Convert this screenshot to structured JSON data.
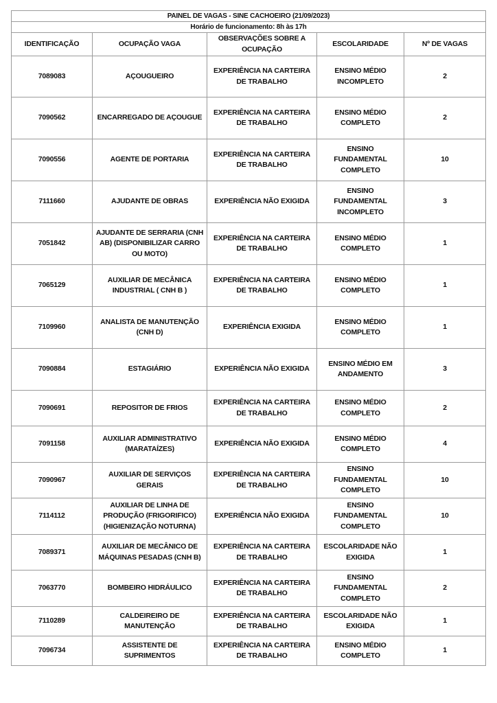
{
  "title": "PAINEL DE VAGAS - SINE CACHOEIRO (21/09/2023)",
  "hours": "Horário de funcionamento: 8h às 17h",
  "columns": [
    "IDENTIFICAÇÃO",
    "OCUPAÇÃO VAGA",
    "OBSERVAÇÕES SOBRE A\nOCUPAÇÃO",
    "ESCOLARIDADE",
    "Nº DE VAGAS"
  ],
  "rows": [
    {
      "id": "7089083",
      "ocupacao": "AÇOUGUEIRO",
      "obs": "EXPERIÊNCIA NA CARTEIRA\nDE TRABALHO",
      "escolaridade": "ENSINO MÉDIO\nINCOMPLETO",
      "vagas": "2"
    },
    {
      "id": "7090562",
      "ocupacao": "ENCARREGADO DE AÇOUGUE",
      "obs": "EXPERIÊNCIA NA CARTEIRA\nDE TRABALHO",
      "escolaridade": "ENSINO MÉDIO\nCOMPLETO",
      "vagas": "2"
    },
    {
      "id": "7090556",
      "ocupacao": "AGENTE DE PORTARIA",
      "obs": "EXPERIÊNCIA NA CARTEIRA\nDE TRABALHO",
      "escolaridade": "ENSINO\nFUNDAMENTAL\nCOMPLETO",
      "vagas": "10"
    },
    {
      "id": "7111660",
      "ocupacao": "AJUDANTE DE OBRAS",
      "obs": "EXPERIÊNCIA NÃO EXIGIDA",
      "escolaridade": "ENSINO\nFUNDAMENTAL\nINCOMPLETO",
      "vagas": "3"
    },
    {
      "id": "7051842",
      "ocupacao": "AJUDANTE DE SERRARIA (CNH\nAB) (DISPONIBILIZAR CARRO\nOU MOTO)",
      "obs": "EXPERIÊNCIA NA CARTEIRA\nDE TRABALHO",
      "escolaridade": "ENSINO MÉDIO\nCOMPLETO",
      "vagas": "1"
    },
    {
      "id": "7065129",
      "ocupacao": "AUXILIAR DE MECÂNICA\nINDUSTRIAL ( CNH B )",
      "obs": "EXPERIÊNCIA NA CARTEIRA\nDE TRABALHO",
      "escolaridade": "ENSINO MÉDIO\nCOMPLETO",
      "vagas": "1"
    },
    {
      "id": "7109960",
      "ocupacao": "ANALISTA DE MANUTENÇÃO\n(CNH D)",
      "obs": "EXPERIÊNCIA EXIGIDA",
      "escolaridade": "ENSINO MÉDIO\nCOMPLETO",
      "vagas": "1"
    },
    {
      "id": "7090884",
      "ocupacao": "ESTAGIÁRIO",
      "obs": "EXPERIÊNCIA NÃO EXIGIDA",
      "escolaridade": "ENSINO MÉDIO EM\nANDAMENTO",
      "vagas": "3"
    },
    {
      "id": "7090691",
      "ocupacao": "REPOSITOR DE FRIOS",
      "obs": "EXPERIÊNCIA NA CARTEIRA\nDE TRABALHO",
      "escolaridade": "ENSINO MÉDIO\nCOMPLETO",
      "vagas": "2"
    },
    {
      "id": "7091158",
      "ocupacao": "AUXILIAR ADMINISTRATIVO\n(MARATAÍZES)",
      "obs": "EXPERIÊNCIA NÃO EXIGIDA",
      "escolaridade": "ENSINO MÉDIO\nCOMPLETO",
      "vagas": "4"
    },
    {
      "id": "7090967",
      "ocupacao": "AUXILIAR DE SERVIÇOS\nGERAIS",
      "obs": "EXPERIÊNCIA NA CARTEIRA\nDE TRABALHO",
      "escolaridade": "ENSINO\nFUNDAMENTAL\nCOMPLETO",
      "vagas": "10"
    },
    {
      "id": "7114112",
      "ocupacao": "AUXILIAR DE LINHA DE\nPRODUÇÃO (FRIGORIFICO)\n(HIGIENIZAÇÃO NOTURNA)",
      "obs": "EXPERIÊNCIA NÃO EXIGIDA",
      "escolaridade": "ENSINO\nFUNDAMENTAL\nCOMPLETO",
      "vagas": "10"
    },
    {
      "id": "7089371",
      "ocupacao": "AUXILIAR DE MECÂNICO DE\nMÁQUINAS PESADAS (CNH B)",
      "obs": "EXPERIÊNCIA NA CARTEIRA\nDE TRABALHO",
      "escolaridade": "ESCOLARIDADE NÃO\nEXIGIDA",
      "vagas": "1"
    },
    {
      "id": "7063770",
      "ocupacao": "BOMBEIRO HIDRÁULICO",
      "obs": "EXPERIÊNCIA NA CARTEIRA\nDE TRABALHO",
      "escolaridade": "ENSINO\nFUNDAMENTAL\nCOMPLETO",
      "vagas": "2"
    },
    {
      "id": "7110289",
      "ocupacao": "CALDEIREIRO DE\nMANUTENÇÃO",
      "obs": "EXPERIÊNCIA NA CARTEIRA\nDE TRABALHO",
      "escolaridade": "ESCOLARIDADE NÃO\nEXIGIDA",
      "vagas": "1"
    },
    {
      "id": "7096734",
      "ocupacao": "ASSISTENTE DE\nSUPRIMENTOS",
      "obs": "EXPERIÊNCIA NA CARTEIRA\nDE TRABALHO",
      "escolaridade": "ENSINO MÉDIO\nCOMPLETO",
      "vagas": "1"
    }
  ]
}
